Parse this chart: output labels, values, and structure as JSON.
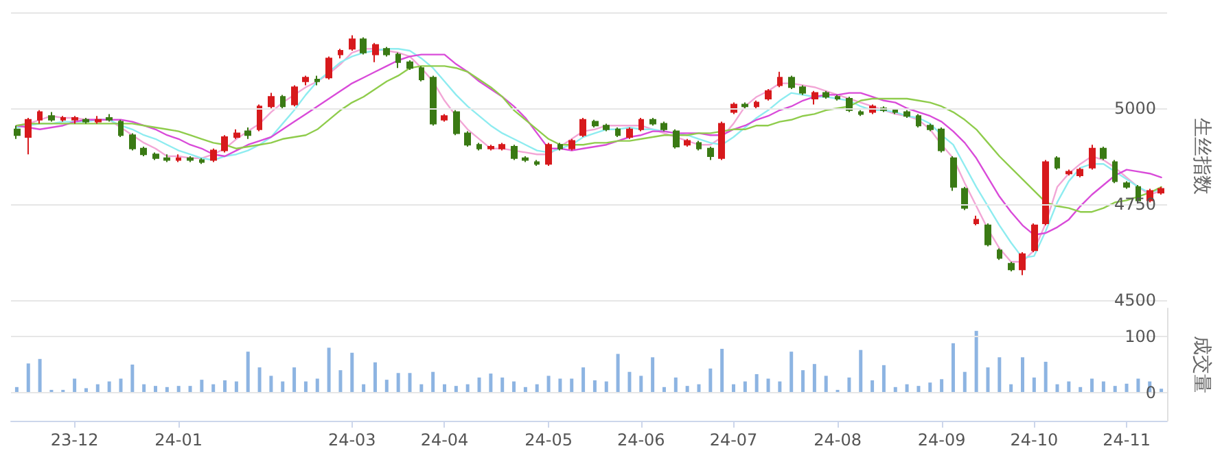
{
  "chart_data": [
    {
      "type": "candlestick",
      "ylabel": "生丝指数",
      "tick_labels": "y",
      "grid": "y",
      "line_style": "solid",
      "categories": [
        null,
        null,
        null,
        null,
        null,
        null,
        null,
        null,
        null,
        null,
        null,
        null,
        null,
        null,
        null,
        null,
        null,
        null,
        null,
        null,
        null,
        null,
        null,
        null,
        null,
        null,
        null,
        null,
        null,
        null,
        null,
        null,
        null,
        null,
        null,
        null,
        null,
        null,
        null,
        null,
        null,
        null,
        null,
        null,
        null,
        null,
        null,
        null,
        null,
        null,
        null,
        null,
        null,
        null,
        null,
        null,
        null,
        null,
        null,
        null,
        null,
        null,
        null,
        null,
        null,
        null,
        null,
        null,
        null,
        null,
        null,
        null,
        null,
        null,
        null,
        null,
        null,
        null,
        null,
        null,
        null,
        null,
        null,
        null,
        null,
        null,
        null,
        null,
        null,
        null,
        null,
        null,
        null,
        null,
        null,
        null,
        null,
        null,
        null,
        null
      ],
      "ylim": [
        4500,
        5250
      ],
      "yticks": [
        4500,
        4750,
        5000,
        {
          "value": 5250,
          "label": null
        }
      ],
      "ohlc": [
        [
          4945,
          4955,
          4920,
          4930
        ],
        [
          4925,
          4975,
          4880,
          4970
        ],
        [
          4970,
          4995,
          4960,
          4990
        ],
        [
          4980,
          4990,
          4965,
          4970
        ],
        [
          4970,
          4980,
          4965,
          4975
        ],
        [
          4970,
          4980,
          4960,
          4975
        ],
        [
          4970,
          4975,
          4960,
          4965
        ],
        [
          4965,
          4980,
          4960,
          4970
        ],
        [
          4975,
          4985,
          4965,
          4970
        ],
        [
          4965,
          4970,
          4925,
          4930
        ],
        [
          4930,
          4935,
          4890,
          4895
        ],
        [
          4895,
          4900,
          4875,
          4880
        ],
        [
          4880,
          4885,
          4865,
          4870
        ],
        [
          4870,
          4880,
          4860,
          4865
        ],
        [
          4865,
          4880,
          4860,
          4870
        ],
        [
          4870,
          4875,
          4860,
          4865
        ],
        [
          4865,
          4870,
          4855,
          4860
        ],
        [
          4865,
          4895,
          4860,
          4890
        ],
        [
          4890,
          4930,
          4885,
          4925
        ],
        [
          4925,
          4945,
          4920,
          4935
        ],
        [
          4940,
          4950,
          4920,
          4930
        ],
        [
          4945,
          5010,
          4940,
          5005
        ],
        [
          5005,
          5040,
          5000,
          5030
        ],
        [
          5030,
          5035,
          5000,
          5005
        ],
        [
          5010,
          5060,
          5005,
          5055
        ],
        [
          5070,
          5085,
          5060,
          5080
        ],
        [
          5075,
          5085,
          5060,
          5070
        ],
        [
          5080,
          5135,
          5075,
          5130
        ],
        [
          5140,
          5155,
          5130,
          5150
        ],
        [
          5155,
          5190,
          5150,
          5180
        ],
        [
          5180,
          5185,
          5140,
          5145
        ],
        [
          5140,
          5170,
          5120,
          5165
        ],
        [
          5155,
          5160,
          5135,
          5140
        ],
        [
          5140,
          5145,
          5105,
          5120
        ],
        [
          5120,
          5125,
          5100,
          5105
        ],
        [
          5105,
          5110,
          5070,
          5075
        ],
        [
          5080,
          5085,
          4955,
          4960
        ],
        [
          4970,
          4985,
          4965,
          4980
        ],
        [
          4990,
          4995,
          4930,
          4935
        ],
        [
          4935,
          4940,
          4900,
          4905
        ],
        [
          4905,
          4910,
          4890,
          4895
        ],
        [
          4895,
          4905,
          4890,
          4900
        ],
        [
          4895,
          4910,
          4890,
          4905
        ],
        [
          4900,
          4905,
          4865,
          4870
        ],
        [
          4870,
          4875,
          4860,
          4865
        ],
        [
          4860,
          4865,
          4850,
          4855
        ],
        [
          4855,
          4910,
          4850,
          4905
        ],
        [
          4905,
          4910,
          4890,
          4895
        ],
        [
          4895,
          4920,
          4890,
          4915
        ],
        [
          4930,
          4975,
          4925,
          4970
        ],
        [
          4965,
          4970,
          4950,
          4955
        ],
        [
          4955,
          4960,
          4940,
          4945
        ],
        [
          4945,
          4950,
          4925,
          4930
        ],
        [
          4925,
          4950,
          4920,
          4945
        ],
        [
          4945,
          4975,
          4940,
          4970
        ],
        [
          4970,
          4975,
          4955,
          4960
        ],
        [
          4960,
          4965,
          4940,
          4945
        ],
        [
          4940,
          4945,
          4895,
          4900
        ],
        [
          4905,
          4920,
          4900,
          4915
        ],
        [
          4910,
          4915,
          4890,
          4895
        ],
        [
          4895,
          4900,
          4865,
          4875
        ],
        [
          4870,
          4965,
          4865,
          4960
        ],
        [
          4990,
          5015,
          4985,
          5010
        ],
        [
          5010,
          5015,
          5000,
          5005
        ],
        [
          5005,
          5020,
          5000,
          5015
        ],
        [
          5025,
          5050,
          5020,
          5045
        ],
        [
          5060,
          5095,
          5055,
          5080
        ],
        [
          5080,
          5085,
          5050,
          5055
        ],
        [
          5055,
          5060,
          5035,
          5040
        ],
        [
          5025,
          5045,
          5010,
          5040
        ],
        [
          5040,
          5045,
          5025,
          5030
        ],
        [
          5030,
          5035,
          5020,
          5025
        ],
        [
          5025,
          5030,
          4990,
          4995
        ],
        [
          4990,
          4995,
          4980,
          4985
        ],
        [
          4990,
          5010,
          4985,
          5005
        ],
        [
          5000,
          5005,
          4990,
          4995
        ],
        [
          4995,
          5000,
          4985,
          4990
        ],
        [
          4990,
          4995,
          4975,
          4980
        ],
        [
          4980,
          4985,
          4950,
          4955
        ],
        [
          4955,
          4960,
          4940,
          4945
        ],
        [
          4945,
          4950,
          4885,
          4890
        ],
        [
          4870,
          4875,
          4785,
          4795
        ],
        [
          4790,
          4795,
          4735,
          4740
        ],
        [
          4700,
          4720,
          4695,
          4710
        ],
        [
          4695,
          4700,
          4640,
          4645
        ],
        [
          4630,
          4635,
          4605,
          4610
        ],
        [
          4595,
          4600,
          4575,
          4580
        ],
        [
          4580,
          4625,
          4565,
          4620
        ],
        [
          4630,
          4700,
          4625,
          4695
        ],
        [
          4700,
          4865,
          4695,
          4860
        ],
        [
          4870,
          4875,
          4840,
          4845
        ],
        [
          4830,
          4840,
          4825,
          4835
        ],
        [
          4825,
          4845,
          4820,
          4840
        ],
        [
          4845,
          4905,
          4840,
          4895
        ],
        [
          4895,
          4900,
          4865,
          4870
        ],
        [
          4860,
          4865,
          4805,
          4810
        ],
        [
          4805,
          4810,
          4790,
          4795
        ],
        [
          4795,
          4800,
          4755,
          4760
        ],
        [
          4760,
          4790,
          4755,
          4785
        ],
        [
          4780,
          4795,
          4775,
          4790
        ]
      ],
      "colors": [
        "#3a7a14",
        "#d7191c",
        "#d7191c",
        "#3a7a14",
        "#d7191c",
        "#d7191c",
        "#3a7a14",
        "#d7191c",
        "#3a7a14",
        "#3a7a14",
        "#3a7a14",
        "#3a7a14",
        "#3a7a14",
        "#3a7a14",
        "#d7191c",
        "#3a7a14",
        "#3a7a14",
        "#d7191c",
        "#d7191c",
        "#d7191c",
        "#3a7a14",
        "#d7191c",
        "#d7191c",
        "#3a7a14",
        "#d7191c",
        "#d7191c",
        "#3a7a14",
        "#d7191c",
        "#d7191c",
        "#d7191c",
        "#3a7a14",
        "#d7191c",
        "#3a7a14",
        "#3a7a14",
        "#3a7a14",
        "#3a7a14",
        "#3a7a14",
        "#d7191c",
        "#3a7a14",
        "#3a7a14",
        "#3a7a14",
        "#d7191c",
        "#d7191c",
        "#3a7a14",
        "#3a7a14",
        "#3a7a14",
        "#d7191c",
        "#3a7a14",
        "#d7191c",
        "#d7191c",
        "#3a7a14",
        "#3a7a14",
        "#3a7a14",
        "#d7191c",
        "#d7191c",
        "#3a7a14",
        "#3a7a14",
        "#3a7a14",
        "#d7191c",
        "#3a7a14",
        "#3a7a14",
        "#d7191c",
        "#d7191c",
        "#3a7a14",
        "#d7191c",
        "#d7191c",
        "#d7191c",
        "#3a7a14",
        "#3a7a14",
        "#d7191c",
        "#3a7a14",
        "#3a7a14",
        "#3a7a14",
        "#3a7a14",
        "#d7191c",
        "#3a7a14",
        "#3a7a14",
        "#3a7a14",
        "#3a7a14",
        "#3a7a14",
        "#3a7a14",
        "#3a7a14",
        "#3a7a14",
        "#d7191c",
        "#3a7a14",
        "#3a7a14",
        "#3a7a14",
        "#d7191c",
        "#d7191c",
        "#d7191c",
        "#3a7a14",
        "#d7191c",
        "#d7191c",
        "#d7191c",
        "#3a7a14",
        "#3a7a14",
        "#3a7a14",
        "#3a7a14",
        "#d7191c",
        "#d7191c"
      ],
      "series": [
        {
          "type": "line",
          "color": "#f2a6d6",
          "values": [
            4955,
            4960,
            4970,
            4980,
            4975,
            4975,
            4970,
            4970,
            4970,
            4950,
            4930,
            4910,
            4895,
            4875,
            4875,
            4870,
            4870,
            4880,
            4895,
            4920,
            4940,
            4960,
            4990,
            5015,
            5035,
            5055,
            5070,
            5090,
            5115,
            5145,
            5155,
            5155,
            5150,
            5145,
            5135,
            5105,
            5070,
            5020,
            4980,
            4945,
            4920,
            4895,
            4895,
            4890,
            4885,
            4880,
            4880,
            4900,
            4920,
            4940,
            4945,
            4955,
            4955,
            4955,
            4955,
            4945,
            4935,
            4925,
            4915,
            4905,
            4905,
            4925,
            4960,
            5005,
            5030,
            5045,
            5065,
            5065,
            5060,
            5055,
            5045,
            5035,
            5025,
            5015,
            5005,
            4995,
            4985,
            4980,
            4970,
            4945,
            4905,
            4870,
            4805,
            4745,
            4685,
            4635,
            4600,
            4600,
            4630,
            4700,
            4795,
            4830,
            4855,
            4875,
            4865,
            4845,
            4820,
            4795,
            4775,
            4785
          ]
        },
        {
          "type": "line",
          "color": "#8eecf0",
          "values": [
            4950,
            4955,
            4960,
            4960,
            4965,
            4965,
            4965,
            4970,
            4970,
            4955,
            4945,
            4930,
            4920,
            4905,
            4890,
            4880,
            4870,
            4865,
            4875,
            4880,
            4890,
            4905,
            4925,
            4960,
            4995,
            5035,
            5070,
            5095,
            5120,
            5135,
            5145,
            5150,
            5155,
            5155,
            5150,
            5130,
            5105,
            5070,
            5035,
            5005,
            4980,
            4955,
            4935,
            4920,
            4905,
            4890,
            4885,
            4895,
            4905,
            4925,
            4935,
            4945,
            4945,
            4950,
            4945,
            4945,
            4940,
            4935,
            4930,
            4920,
            4910,
            4905,
            4925,
            4950,
            4975,
            4995,
            5020,
            5040,
            5035,
            5030,
            5030,
            5025,
            5020,
            5005,
            4995,
            4995,
            4990,
            4980,
            4975,
            4960,
            4930,
            4905,
            4850,
            4795,
            4745,
            4695,
            4650,
            4610,
            4615,
            4680,
            4755,
            4810,
            4845,
            4855,
            4855,
            4835,
            4815,
            4795,
            4780,
            4790
          ]
        },
        {
          "type": "line",
          "color": "#d94bd9",
          "values": [
            4955,
            4950,
            4945,
            4950,
            4955,
            4965,
            4970,
            4970,
            4970,
            4970,
            4965,
            4955,
            4945,
            4930,
            4920,
            4905,
            4895,
            4880,
            4875,
            4890,
            4905,
            4915,
            4925,
            4945,
            4965,
            4985,
            5005,
            5025,
            5045,
            5065,
            5080,
            5095,
            5110,
            5125,
            5135,
            5140,
            5140,
            5140,
            5115,
            5095,
            5070,
            5050,
            5030,
            5005,
            4975,
            4935,
            4895,
            4895,
            4890,
            4895,
            4900,
            4905,
            4915,
            4925,
            4930,
            4940,
            4940,
            4935,
            4935,
            4935,
            4930,
            4930,
            4945,
            4955,
            4970,
            4980,
            4995,
            5005,
            5020,
            5030,
            5035,
            5035,
            5040,
            5040,
            5030,
            5020,
            5015,
            5000,
            4990,
            4980,
            4965,
            4940,
            4910,
            4870,
            4820,
            4770,
            4730,
            4695,
            4670,
            4675,
            4690,
            4710,
            4745,
            4775,
            4800,
            4825,
            4840,
            4835,
            4830,
            4820
          ]
        },
        {
          "type": "line",
          "color": "#8fcc4c",
          "values": [
            4955,
            4960,
            4960,
            4960,
            4960,
            4960,
            4960,
            4960,
            4960,
            4960,
            4960,
            4955,
            4950,
            4945,
            4940,
            4930,
            4920,
            4910,
            4905,
            4895,
            4900,
            4905,
            4910,
            4920,
            4925,
            4930,
            4945,
            4970,
            4995,
            5015,
            5030,
            5050,
            5070,
            5085,
            5105,
            5110,
            5110,
            5110,
            5105,
            5095,
            5075,
            5055,
            5030,
            4995,
            4970,
            4945,
            4920,
            4905,
            4905,
            4905,
            4910,
            4910,
            4915,
            4915,
            4920,
            4925,
            4930,
            4930,
            4930,
            4935,
            4935,
            4940,
            4945,
            4945,
            4955,
            4955,
            4965,
            4970,
            4980,
            4985,
            4995,
            5000,
            5005,
            5020,
            5025,
            5025,
            5025,
            5025,
            5020,
            5015,
            5005,
            4990,
            4970,
            4945,
            4910,
            4875,
            4845,
            4815,
            4785,
            4755,
            4745,
            4740,
            4730,
            4730,
            4740,
            4755,
            4760,
            4770,
            4780,
            4795
          ]
        }
      ]
    },
    {
      "type": "bar",
      "ylabel": "成交量",
      "grid": "y",
      "color": "#8db4e2",
      "categories": [
        null,
        null,
        null,
        null,
        null,
        "23-12",
        null,
        null,
        null,
        null,
        null,
        null,
        null,
        null,
        "24-01",
        null,
        null,
        null,
        null,
        null,
        null,
        null,
        null,
        null,
        null,
        null,
        null,
        null,
        null,
        "24-03",
        null,
        null,
        null,
        null,
        null,
        null,
        null,
        "24-04",
        null,
        null,
        null,
        null,
        null,
        null,
        null,
        null,
        "24-05",
        null,
        null,
        null,
        null,
        null,
        null,
        null,
        "24-06",
        null,
        null,
        null,
        null,
        null,
        null,
        null,
        "24-07",
        null,
        null,
        null,
        null,
        null,
        null,
        null,
        null,
        "24-08",
        null,
        null,
        null,
        null,
        null,
        null,
        null,
        null,
        "24-09",
        null,
        null,
        null,
        null,
        null,
        null,
        null,
        "24-10",
        null,
        null,
        null,
        null,
        null,
        null,
        null,
        "24-11",
        null,
        null,
        null
      ],
      "ylim": [
        -50,
        150
      ],
      "yticks": [
        0,
        100
      ],
      "values": [
        10,
        52,
        60,
        5,
        5,
        25,
        8,
        15,
        20,
        25,
        50,
        15,
        12,
        10,
        12,
        12,
        23,
        15,
        22,
        20,
        73,
        45,
        30,
        20,
        45,
        20,
        25,
        80,
        40,
        71,
        15,
        54,
        23,
        35,
        35,
        15,
        37,
        15,
        12,
        15,
        27,
        34,
        27,
        20,
        10,
        15,
        30,
        25,
        25,
        45,
        22,
        20,
        69,
        37,
        30,
        63,
        10,
        27,
        12,
        15,
        43,
        78,
        15,
        20,
        33,
        25,
        20,
        73,
        40,
        51,
        30,
        5,
        27,
        76,
        22,
        49,
        10,
        15,
        12,
        18,
        24,
        88,
        37,
        110,
        45,
        63,
        15,
        63,
        27,
        55,
        15,
        20,
        10,
        25,
        20,
        12,
        16,
        25,
        20,
        7
      ]
    }
  ]
}
